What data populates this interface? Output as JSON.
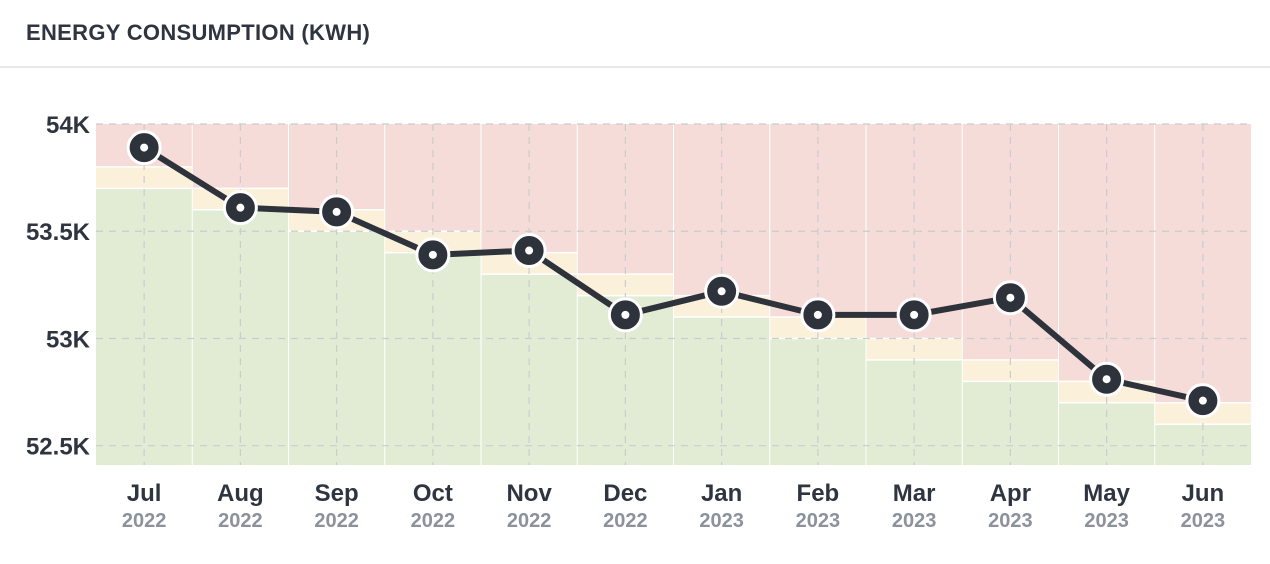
{
  "title": "ENERGY CONSUMPTION (KWH)",
  "colors": {
    "line": "#2e323a",
    "marker_fill": "#2e323a",
    "marker_stroke": "#ffffff",
    "band_good": "#e2ecd5",
    "band_warn": "#fbf0d9",
    "band_bad": "#f6dcd9",
    "grid": "#c9ccd0"
  },
  "chart_data": {
    "type": "line",
    "title": "ENERGY CONSUMPTION (KWH)",
    "categories": [
      "Jul",
      "Aug",
      "Sep",
      "Oct",
      "Nov",
      "Dec",
      "Jan",
      "Feb",
      "Mar",
      "Apr",
      "May",
      "Jun"
    ],
    "category_years": [
      "2022",
      "2022",
      "2022",
      "2022",
      "2022",
      "2022",
      "2023",
      "2023",
      "2023",
      "2023",
      "2023",
      "2023"
    ],
    "series": [
      {
        "values": [
          53890,
          53610,
          53590,
          53390,
          53410,
          53110,
          53220,
          53110,
          53110,
          53190,
          52810,
          52710
        ]
      }
    ],
    "bands": {
      "good_upper": [
        53700,
        53600,
        53500,
        53400,
        53300,
        53200,
        53100,
        53000,
        52900,
        52800,
        52700,
        52600
      ],
      "warn_upper": [
        53800,
        53700,
        53600,
        53500,
        53400,
        53300,
        53200,
        53100,
        53000,
        52900,
        52800,
        52700
      ]
    },
    "yticks": [
      52500,
      53000,
      53500,
      54000
    ],
    "ytick_labels": [
      "52.5K",
      "53K",
      "53.5K",
      "54K"
    ],
    "ylim": [
      52410,
      54000
    ],
    "grid": true,
    "legend": "none"
  }
}
